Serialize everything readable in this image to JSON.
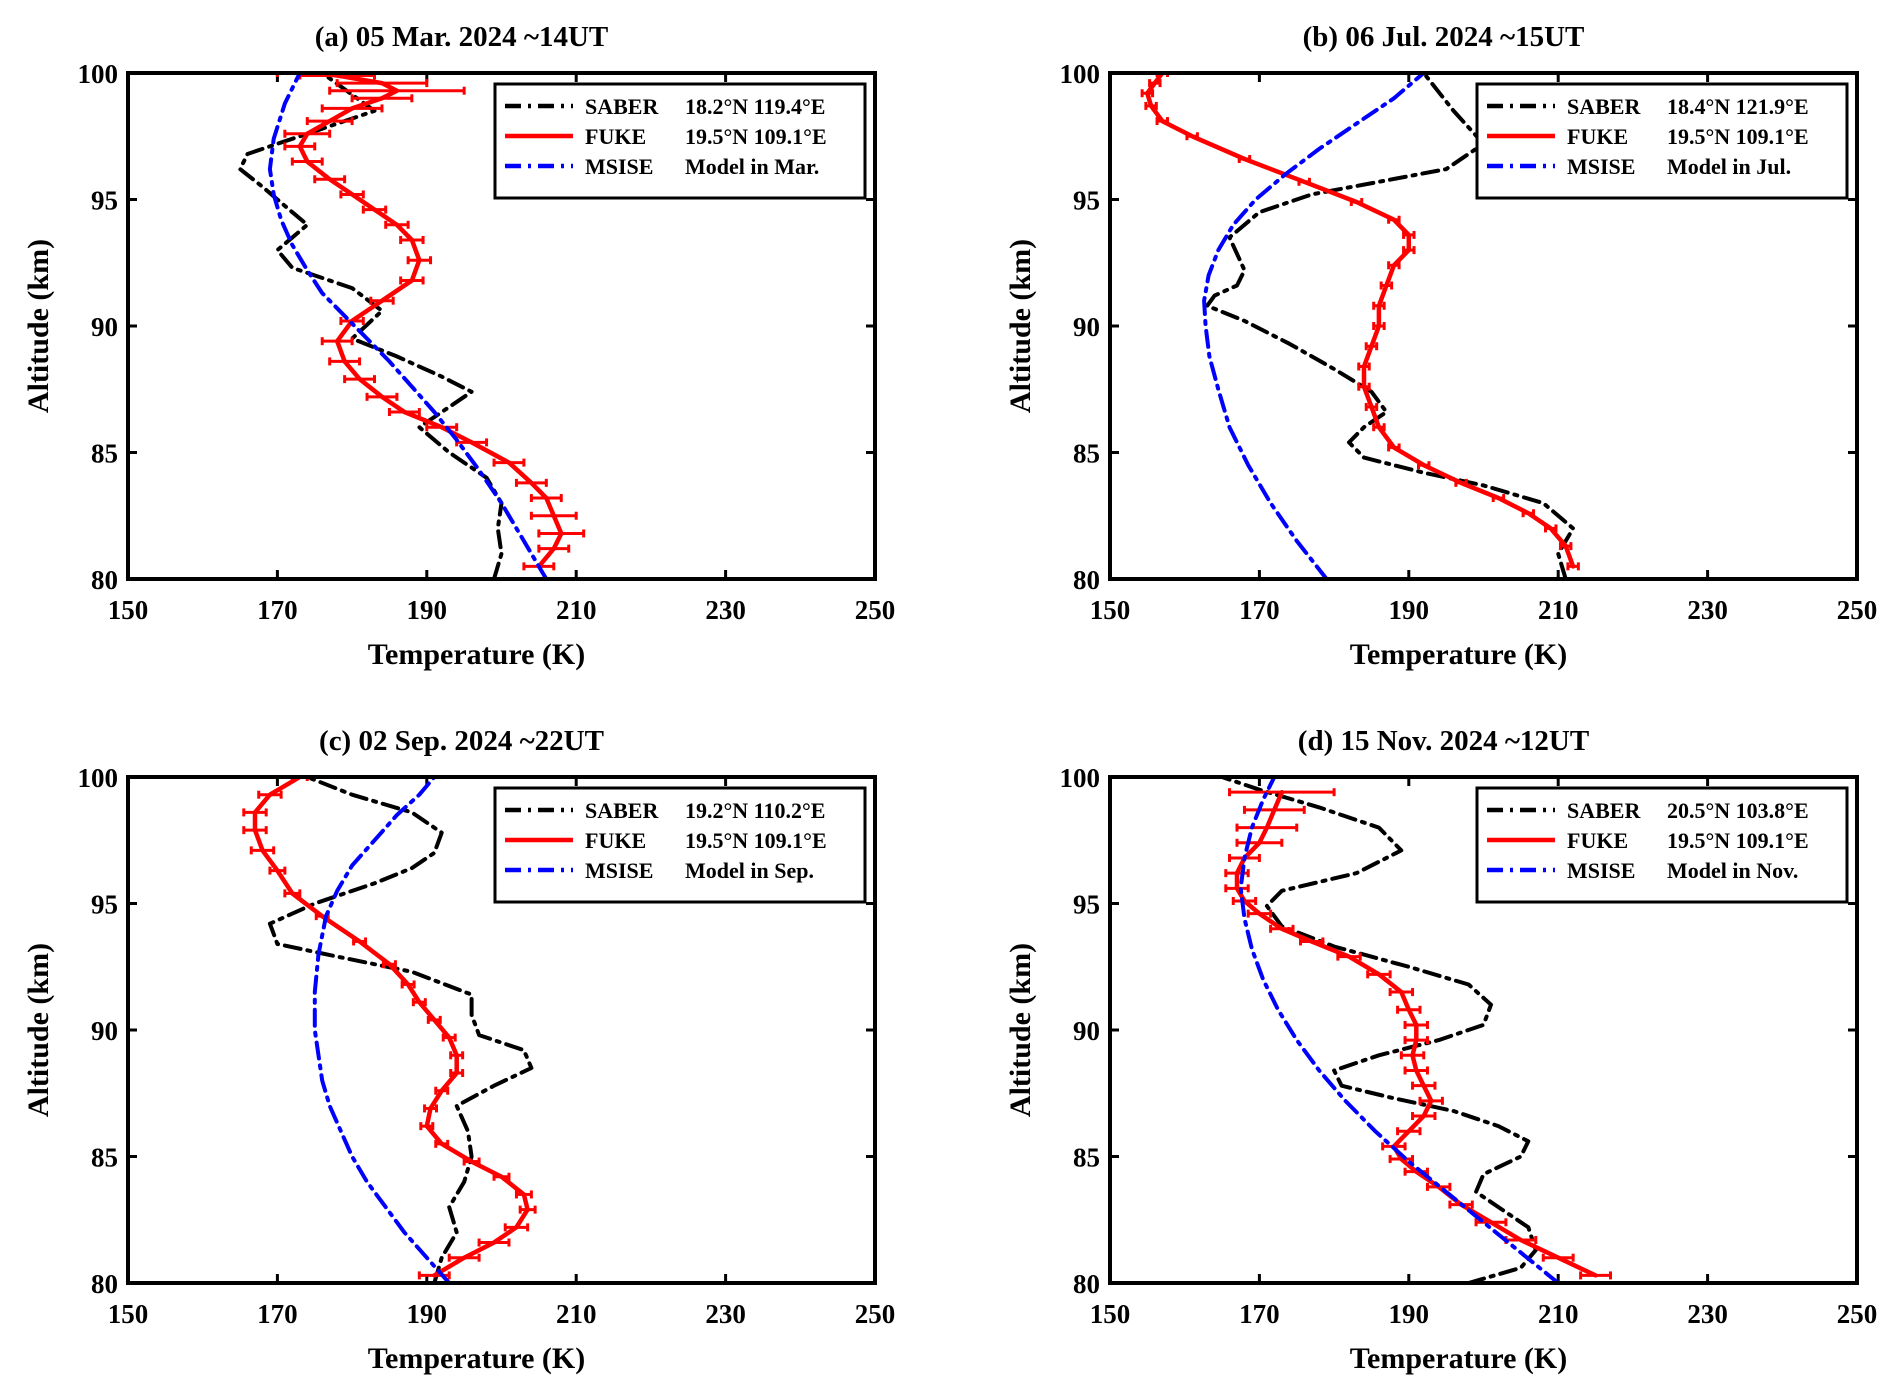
{
  "colors": {
    "saber": "#000000",
    "fuke": "#ff0000",
    "msise": "#0000ff"
  },
  "chart_data": [
    {
      "type": "line",
      "title": "(a) 05 Mar. 2024 ~14UT",
      "xlabel": "Temperature (K)",
      "ylabel": "Altitude (km)",
      "xlim": [
        150,
        250
      ],
      "ylim": [
        80,
        100
      ],
      "xticks": [
        150,
        170,
        190,
        210,
        230,
        250
      ],
      "yticks": [
        80,
        85,
        90,
        95,
        100
      ],
      "legend_position": "top-right",
      "series": [
        {
          "name": "SABER",
          "legend_location": "18.2°N 119.4°E",
          "style": "dashdot",
          "color": "#000000",
          "x": [
            199,
            200,
            199.5,
            200,
            198,
            193,
            189,
            193,
            196,
            192,
            186,
            180,
            184,
            180,
            172,
            170,
            174,
            172,
            168,
            165,
            166,
            170,
            176,
            183,
            176
          ],
          "y": [
            80,
            81,
            82,
            83,
            84,
            85,
            86,
            86.8,
            87.4,
            88,
            88.8,
            89.5,
            90.6,
            91.5,
            92.3,
            93,
            94,
            94.5,
            95.5,
            96.2,
            96.8,
            97.2,
            97.8,
            98.5,
            100
          ]
        },
        {
          "name": "FUKE",
          "legend_location": "19.5°N 109.1°E",
          "style": "solid",
          "color": "#ff0000",
          "errorbars": true,
          "x": [
            205,
            207,
            208,
            207,
            206,
            204,
            201,
            196,
            192,
            187,
            184,
            181,
            179,
            178,
            180,
            184,
            188,
            189,
            188,
            186,
            183,
            180,
            177,
            174,
            173,
            174,
            177,
            180,
            184,
            186,
            184,
            178,
            175
          ],
          "y": [
            80.5,
            81.2,
            81.8,
            82.5,
            83.2,
            83.8,
            84.6,
            85.4,
            86,
            86.6,
            87.2,
            87.9,
            88.6,
            89.4,
            90.2,
            91,
            91.8,
            92.6,
            93.4,
            94,
            94.6,
            95.2,
            95.8,
            96.5,
            97.1,
            97.6,
            98.1,
            98.6,
            99,
            99.3,
            99.6,
            99.9,
            100
          ],
          "err": [
            2,
            2,
            3,
            3,
            2,
            2,
            2,
            2,
            2,
            2,
            2,
            2,
            2,
            2,
            1.5,
            1.5,
            1.5,
            1.5,
            1.5,
            1.5,
            1.5,
            1.5,
            2,
            2,
            2,
            3,
            3,
            4,
            4,
            9,
            6,
            5,
            5
          ]
        },
        {
          "name": "MSISE",
          "legend_location": "Model in Mar.",
          "style": "dashdot",
          "color": "#0000ff",
          "x": [
            206,
            203,
            200,
            197,
            194,
            191,
            188,
            185,
            182,
            179,
            176,
            174,
            172,
            170.5,
            169.5,
            169,
            169.5,
            171,
            173
          ],
          "y": [
            80,
            81.5,
            83,
            84.3,
            85.5,
            86.6,
            87.6,
            88.6,
            89.5,
            90.4,
            91.3,
            92.2,
            93.2,
            94.2,
            95.2,
            96.2,
            97.4,
            98.8,
            100
          ]
        }
      ]
    },
    {
      "type": "line",
      "title": "(b) 06 Jul. 2024 ~15UT",
      "xlabel": "Temperature (K)",
      "ylabel": "Altitude (km)",
      "xlim": [
        150,
        250
      ],
      "ylim": [
        80,
        100
      ],
      "xticks": [
        150,
        170,
        190,
        210,
        230,
        250
      ],
      "yticks": [
        80,
        85,
        90,
        95,
        100
      ],
      "legend_position": "top-right",
      "series": [
        {
          "name": "SABER",
          "legend_location": "18.4°N 121.9°E",
          "style": "dashdot",
          "color": "#000000",
          "x": [
            211,
            210,
            212,
            208,
            200,
            192,
            184,
            182,
            184,
            187,
            185,
            180,
            174,
            168,
            163,
            164,
            167,
            168,
            166,
            170,
            177,
            186,
            195,
            200,
            196,
            192
          ],
          "y": [
            80,
            81,
            82,
            83,
            83.7,
            84.2,
            84.8,
            85.4,
            86,
            86.6,
            87.4,
            88.3,
            89.3,
            90.2,
            90.8,
            91.2,
            91.6,
            92.2,
            93.5,
            94.5,
            95.2,
            95.7,
            96.2,
            97.2,
            98.5,
            100
          ]
        },
        {
          "name": "FUKE",
          "legend_location": "19.5°N 109.1°E",
          "style": "solid",
          "color": "#ff0000",
          "errorbars": true,
          "x": [
            212,
            211,
            209,
            206,
            202,
            197,
            192,
            188,
            186,
            185,
            184,
            184,
            185,
            186,
            186,
            187,
            188,
            190,
            190,
            188,
            183,
            176,
            168,
            161,
            157,
            155.5,
            155,
            156,
            157
          ],
          "y": [
            80.5,
            81.3,
            82,
            82.6,
            83.2,
            83.8,
            84.5,
            85.2,
            86,
            86.8,
            87.6,
            88.4,
            89.2,
            90,
            90.8,
            91.6,
            92.4,
            93,
            93.6,
            94.2,
            94.9,
            95.7,
            96.6,
            97.5,
            98.1,
            98.7,
            99.2,
            99.6,
            100
          ],
          "err": [
            0.7,
            0.7,
            0.7,
            0.7,
            0.7,
            0.7,
            0.7,
            0.7,
            0.7,
            0.7,
            0.7,
            0.7,
            0.7,
            0.7,
            0.7,
            0.7,
            0.7,
            0.7,
            0.7,
            0.7,
            0.7,
            0.7,
            0.7,
            0.7,
            0.7,
            0.7,
            0.7,
            0.7,
            0.7
          ]
        },
        {
          "name": "MSISE",
          "legend_location": "Model in Jul.",
          "style": "dashdot",
          "color": "#0000ff",
          "x": [
            179,
            175,
            171.5,
            168.5,
            166,
            164.5,
            163.3,
            162.8,
            162.6,
            163.2,
            164.5,
            166.5,
            169.5,
            173.5,
            178,
            183,
            188,
            192
          ],
          "y": [
            80,
            81.5,
            83,
            84.5,
            86,
            87.5,
            88.8,
            90,
            91,
            92,
            93,
            94,
            95,
            96,
            97,
            98,
            99,
            100
          ]
        }
      ]
    },
    {
      "type": "line",
      "title": "(c) 02 Sep. 2024 ~22UT",
      "xlabel": "Temperature (K)",
      "ylabel": "Altitude (km)",
      "xlim": [
        150,
        250
      ],
      "ylim": [
        80,
        100
      ],
      "xticks": [
        150,
        170,
        190,
        210,
        230,
        250
      ],
      "yticks": [
        80,
        85,
        90,
        95,
        100
      ],
      "legend_position": "top-right",
      "series": [
        {
          "name": "SABER",
          "legend_location": "19.2°N 110.2°E",
          "style": "dashdot",
          "color": "#000000",
          "x": [
            191,
            192,
            194,
            193,
            195,
            196,
            195.5,
            194,
            199,
            204,
            203,
            197,
            196,
            196,
            188,
            178,
            170,
            169,
            175,
            183,
            188,
            191,
            192,
            188,
            180,
            174
          ],
          "y": [
            80,
            81,
            82,
            83,
            84,
            85,
            86,
            87,
            87.8,
            88.5,
            89.2,
            89.8,
            90.6,
            91.4,
            92.3,
            92.9,
            93.4,
            94.2,
            95,
            95.8,
            96.4,
            97,
            97.8,
            98.6,
            99.3,
            100
          ]
        },
        {
          "name": "FUKE",
          "legend_location": "19.5°N 109.1°E",
          "style": "solid",
          "color": "#ff0000",
          "errorbars": true,
          "x": [
            191,
            195,
            199,
            202,
            203.5,
            203,
            200,
            196,
            192,
            190,
            190.5,
            192,
            194,
            194,
            193,
            191,
            189,
            187.5,
            185,
            181,
            176,
            172,
            170,
            168,
            167,
            167,
            169,
            173
          ],
          "y": [
            80.3,
            81,
            81.6,
            82.2,
            82.9,
            83.5,
            84.2,
            84.8,
            85.5,
            86.2,
            86.9,
            87.6,
            88.3,
            89,
            89.7,
            90.4,
            91.1,
            91.8,
            92.6,
            93.5,
            94.5,
            95.4,
            96.3,
            97.1,
            97.9,
            98.6,
            99.3,
            100
          ],
          "err": [
            2,
            2,
            2,
            1.5,
            1,
            1,
            1,
            1,
            0.8,
            0.8,
            0.8,
            0.8,
            0.8,
            0.8,
            0.8,
            0.8,
            0.8,
            0.8,
            0.8,
            0.8,
            0.8,
            1,
            1,
            1.5,
            1.5,
            1.5,
            1.5,
            1
          ]
        },
        {
          "name": "MSISE",
          "legend_location": "Model in Sep.",
          "style": "dashdot",
          "color": "#0000ff",
          "x": [
            193,
            190,
            187,
            184.5,
            182,
            180,
            178.5,
            177,
            176,
            175.5,
            175,
            175,
            175.5,
            176.5,
            178,
            180,
            183,
            186,
            189,
            191
          ],
          "y": [
            80,
            81,
            82,
            83,
            84,
            85,
            86,
            87,
            88,
            89,
            90,
            91.5,
            93,
            94.5,
            95.5,
            96.5,
            97.5,
            98.5,
            99.3,
            100
          ]
        }
      ]
    },
    {
      "type": "line",
      "title": "(d) 15 Nov. 2024 ~12UT",
      "xlabel": "Temperature (K)",
      "ylabel": "Altitude (km)",
      "xlim": [
        150,
        250
      ],
      "ylim": [
        80,
        100
      ],
      "xticks": [
        150,
        170,
        190,
        210,
        230,
        250
      ],
      "yticks": [
        80,
        85,
        90,
        95,
        100
      ],
      "legend_position": "top-right",
      "series": [
        {
          "name": "SABER",
          "legend_location": "20.5°N 103.8°E",
          "style": "dashdot",
          "color": "#000000",
          "x": [
            198,
            205,
            207,
            206,
            202,
            199,
            200,
            205,
            206,
            202,
            196,
            188,
            181,
            180,
            186,
            194,
            200,
            201,
            198,
            190,
            180,
            173,
            171,
            173,
            183,
            189,
            186,
            178,
            170,
            165
          ],
          "y": [
            80,
            80.6,
            81.3,
            82.2,
            83,
            83.6,
            84.3,
            85,
            85.6,
            86.2,
            86.8,
            87.3,
            87.8,
            88.4,
            89,
            89.6,
            90.2,
            91,
            91.8,
            92.5,
            93.3,
            94.1,
            94.9,
            95.5,
            96.2,
            97.1,
            98,
            98.8,
            99.5,
            100
          ]
        },
        {
          "name": "FUKE",
          "legend_location": "19.5°N 109.1°E",
          "style": "solid",
          "color": "#ff0000",
          "errorbars": true,
          "x": [
            215,
            210,
            205,
            201,
            197,
            194,
            191,
            189,
            188,
            190,
            192,
            193,
            192,
            191,
            190.5,
            191,
            191,
            190,
            189,
            186,
            182,
            177,
            173,
            170,
            168,
            167,
            167,
            168,
            170,
            171,
            172,
            173
          ],
          "y": [
            80.3,
            81,
            81.7,
            82.4,
            83.1,
            83.8,
            84.4,
            84.9,
            85.4,
            86,
            86.6,
            87.2,
            87.8,
            88.4,
            89,
            89.6,
            90.2,
            90.8,
            91.5,
            92.2,
            92.9,
            93.5,
            94,
            94.6,
            95.1,
            95.6,
            96.2,
            96.8,
            97.4,
            98,
            98.7,
            99.4
          ],
          "err": [
            2,
            2,
            2,
            2,
            1.5,
            1.5,
            1.5,
            1.5,
            1.5,
            1.5,
            1.5,
            1.5,
            1.5,
            1.5,
            1.5,
            1.5,
            1.5,
            1.5,
            1.5,
            1.5,
            1.5,
            1.5,
            1.5,
            1.5,
            1.5,
            1.5,
            1.5,
            2,
            3,
            4,
            4,
            7
          ]
        },
        {
          "name": "MSISE",
          "legend_location": "Model in Nov.",
          "style": "dashdot",
          "color": "#0000ff",
          "x": [
            210,
            205,
            200,
            195,
            190,
            185.5,
            181.5,
            178,
            175,
            172.5,
            170.5,
            169,
            168,
            167.5,
            168,
            169,
            170.5,
            172
          ],
          "y": [
            80,
            81.2,
            82.4,
            83.6,
            84.8,
            86,
            87.2,
            88.4,
            89.6,
            90.8,
            92,
            93.2,
            94.4,
            95.6,
            96.8,
            98,
            99.1,
            100
          ]
        }
      ]
    }
  ]
}
